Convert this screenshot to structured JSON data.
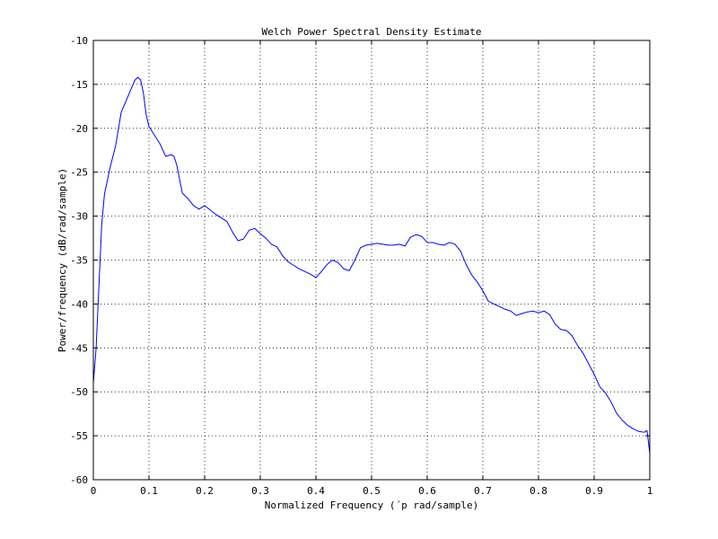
{
  "chart_data": {
    "type": "line",
    "title": "Welch Power Spectral Density Estimate",
    "xlabel": "Normalized Frequency  (´p rad/sample)",
    "ylabel": "Power/frequency (dB/rad/sample)",
    "xlim": [
      0,
      1
    ],
    "ylim": [
      -60,
      -10
    ],
    "xticks": [
      0,
      0.1,
      0.2,
      0.3,
      0.4,
      0.5,
      0.6,
      0.7,
      0.8,
      0.9,
      1
    ],
    "xtick_labels": [
      "0",
      "0.1",
      "0.2",
      "0.3",
      "0.4",
      "0.5",
      "0.6",
      "0.7",
      "0.8",
      "0.9",
      "1"
    ],
    "yticks": [
      -60,
      -55,
      -50,
      -45,
      -40,
      -35,
      -30,
      -25,
      -20,
      -15,
      -10
    ],
    "ytick_labels": [
      "-60",
      "-55",
      "-50",
      "-45",
      "-40",
      "-35",
      "-30",
      "-25",
      "-20",
      "-15",
      "-10"
    ],
    "grid": true,
    "line_color": "#0000ff",
    "series": [
      {
        "x": [
          0,
          0.005,
          0.01,
          0.015,
          0.02,
          0.025,
          0.03,
          0.04,
          0.05,
          0.06,
          0.07,
          0.075,
          0.08,
          0.085,
          0.09,
          0.095,
          0.1,
          0.11,
          0.12,
          0.13,
          0.14,
          0.145,
          0.15,
          0.16,
          0.17,
          0.18,
          0.19,
          0.2,
          0.21,
          0.22,
          0.23,
          0.24,
          0.25,
          0.26,
          0.27,
          0.28,
          0.29,
          0.3,
          0.31,
          0.32,
          0.33,
          0.34,
          0.35,
          0.36,
          0.37,
          0.38,
          0.39,
          0.4,
          0.41,
          0.42,
          0.43,
          0.44,
          0.45,
          0.46,
          0.47,
          0.48,
          0.49,
          0.5,
          0.51,
          0.52,
          0.53,
          0.54,
          0.55,
          0.56,
          0.57,
          0.58,
          0.59,
          0.6,
          0.61,
          0.62,
          0.63,
          0.64,
          0.65,
          0.66,
          0.67,
          0.68,
          0.69,
          0.7,
          0.71,
          0.72,
          0.73,
          0.74,
          0.75,
          0.76,
          0.77,
          0.78,
          0.79,
          0.8,
          0.81,
          0.82,
          0.83,
          0.84,
          0.85,
          0.86,
          0.87,
          0.88,
          0.89,
          0.9,
          0.91,
          0.92,
          0.93,
          0.94,
          0.95,
          0.96,
          0.97,
          0.98,
          0.99,
          0.995,
          1
        ],
        "y": [
          -49,
          -45,
          -38,
          -31,
          -27.5,
          -26,
          -24.5,
          -22,
          -18.2,
          -16.7,
          -15.2,
          -14.5,
          -14.2,
          -14.5,
          -16,
          -18.5,
          -19.8,
          -20.8,
          -21.8,
          -23.2,
          -23,
          -23.2,
          -24.2,
          -27.4,
          -28,
          -28.8,
          -29.2,
          -28.8,
          -29.3,
          -29.8,
          -30.2,
          -30.6,
          -31.8,
          -32.8,
          -32.6,
          -31.6,
          -31.4,
          -32,
          -32.5,
          -33.2,
          -33.5,
          -34.5,
          -35.2,
          -35.6,
          -36,
          -36.3,
          -36.6,
          -37,
          -36.3,
          -35.5,
          -35,
          -35.3,
          -36,
          -36.2,
          -35,
          -33.6,
          -33.3,
          -33.2,
          -33.1,
          -33.2,
          -33.3,
          -33.3,
          -33.2,
          -33.4,
          -32.4,
          -32.1,
          -32.3,
          -33,
          -33,
          -33.2,
          -33.3,
          -33,
          -33.2,
          -34,
          -35.5,
          -36.7,
          -37.5,
          -38.5,
          -39.7,
          -40,
          -40.3,
          -40.6,
          -40.8,
          -41.3,
          -41.1,
          -40.9,
          -40.8,
          -41,
          -40.8,
          -41.2,
          -42.3,
          -42.9,
          -43,
          -43.6,
          -44.7,
          -45.6,
          -46.8,
          -48,
          -49.4,
          -50.1,
          -51.1,
          -52.4,
          -53.2,
          -53.8,
          -54.2,
          -54.5,
          -54.6,
          -54.4,
          -57
        ]
      }
    ]
  }
}
